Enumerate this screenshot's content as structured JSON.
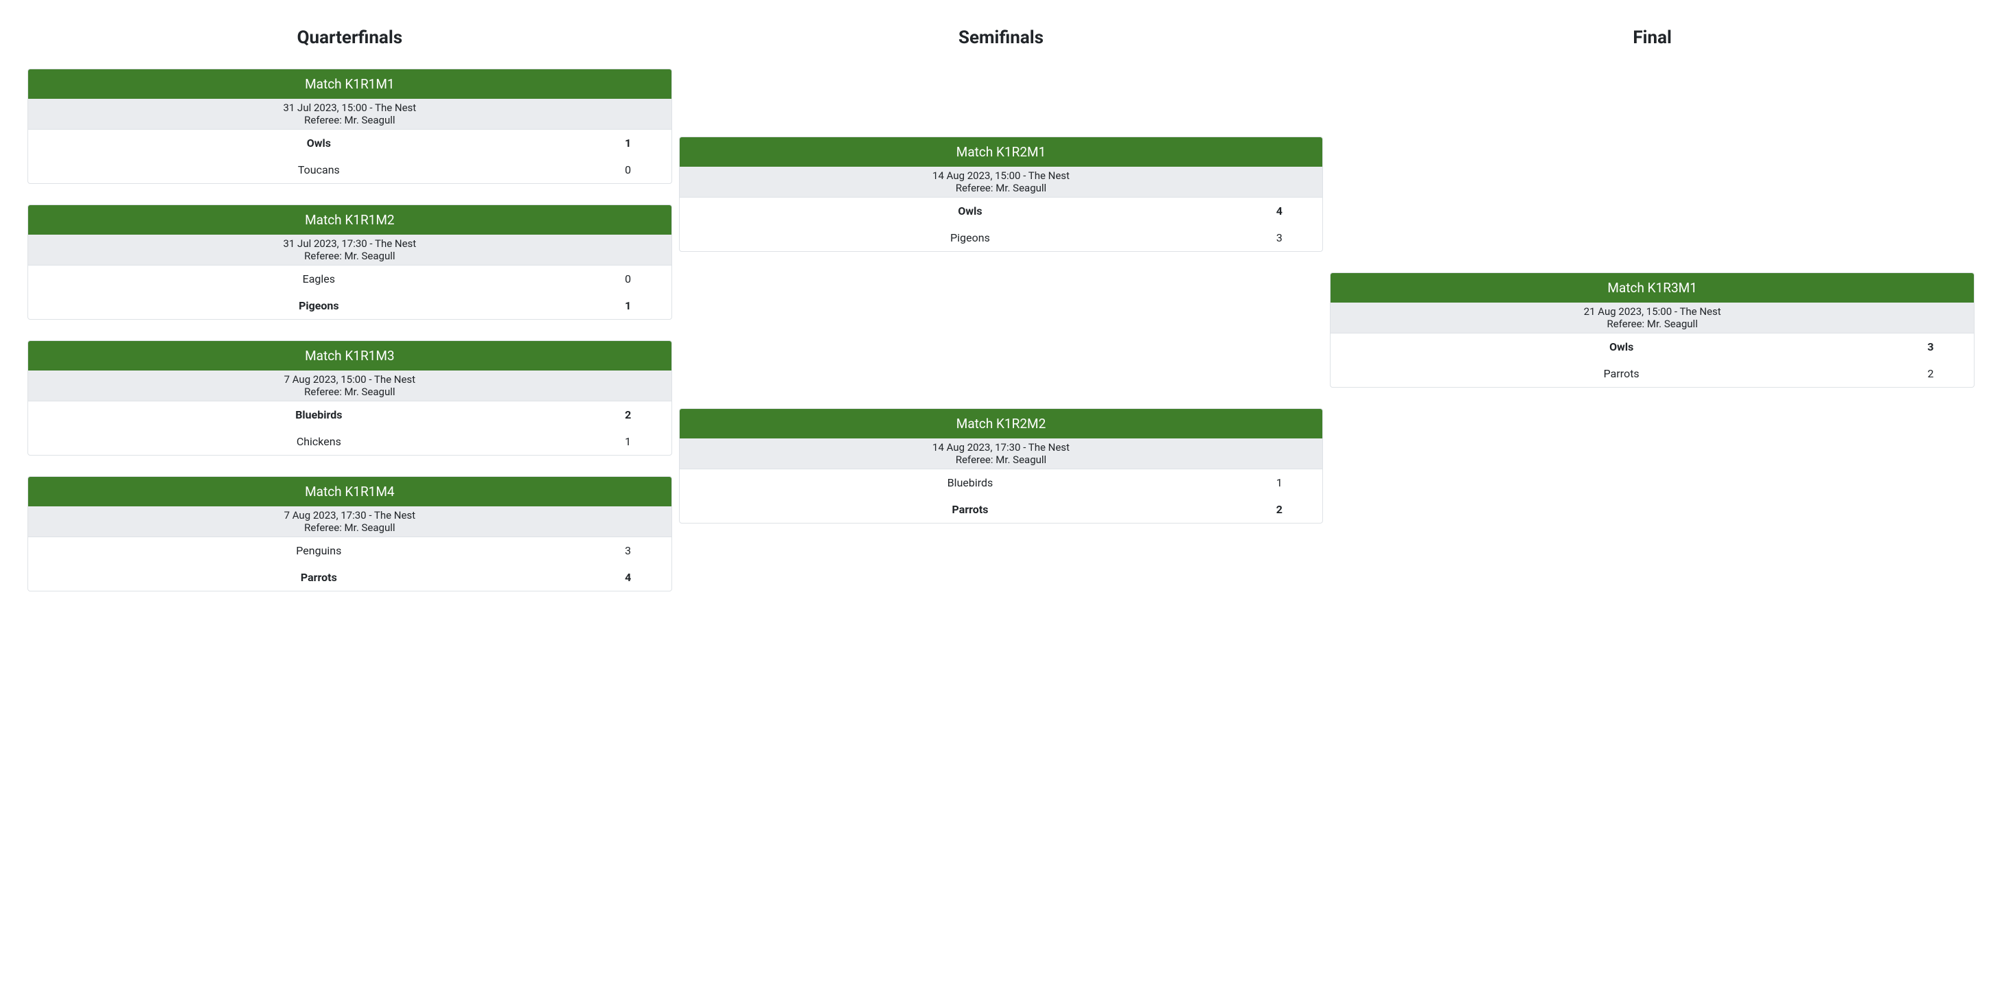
{
  "colors": {
    "header_bg": "#3f7e2a",
    "header_text": "#ffffff",
    "meta_bg": "#eaecef",
    "card_border": "#dee2e6",
    "page_bg": "#ffffff",
    "text": "#212529"
  },
  "rounds": [
    {
      "title": "Quarterfinals",
      "matches": [
        {
          "code": "Match K1R1M1",
          "datetime_venue": "31 Jul 2023, 15:00 - The Nest",
          "referee": "Referee: Mr. Seagull",
          "teams": [
            {
              "name": "Owls",
              "score": "1",
              "winner": true
            },
            {
              "name": "Toucans",
              "score": "0",
              "winner": false
            }
          ]
        },
        {
          "code": "Match K1R1M2",
          "datetime_venue": "31 Jul 2023, 17:30 - The Nest",
          "referee": "Referee: Mr. Seagull",
          "teams": [
            {
              "name": "Eagles",
              "score": "0",
              "winner": false
            },
            {
              "name": "Pigeons",
              "score": "1",
              "winner": true
            }
          ]
        },
        {
          "code": "Match K1R1M3",
          "datetime_venue": "7 Aug 2023, 15:00 - The Nest",
          "referee": "Referee: Mr. Seagull",
          "teams": [
            {
              "name": "Bluebirds",
              "score": "2",
              "winner": true
            },
            {
              "name": "Chickens",
              "score": "1",
              "winner": false
            }
          ]
        },
        {
          "code": "Match K1R1M4",
          "datetime_venue": "7 Aug 2023, 17:30 - The Nest",
          "referee": "Referee: Mr. Seagull",
          "teams": [
            {
              "name": "Penguins",
              "score": "3",
              "winner": false
            },
            {
              "name": "Parrots",
              "score": "4",
              "winner": true
            }
          ]
        }
      ]
    },
    {
      "title": "Semifinals",
      "matches": [
        {
          "code": "Match K1R2M1",
          "datetime_venue": "14 Aug 2023, 15:00 - The Nest",
          "referee": "Referee: Mr. Seagull",
          "teams": [
            {
              "name": "Owls",
              "score": "4",
              "winner": true
            },
            {
              "name": "Pigeons",
              "score": "3",
              "winner": false
            }
          ]
        },
        {
          "code": "Match K1R2M2",
          "datetime_venue": "14 Aug 2023, 17:30 - The Nest",
          "referee": "Referee: Mr. Seagull",
          "teams": [
            {
              "name": "Bluebirds",
              "score": "1",
              "winner": false
            },
            {
              "name": "Parrots",
              "score": "2",
              "winner": true
            }
          ]
        }
      ]
    },
    {
      "title": "Final",
      "matches": [
        {
          "code": "Match K1R3M1",
          "datetime_venue": "21 Aug 2023, 15:00 - The Nest",
          "referee": "Referee: Mr. Seagull",
          "teams": [
            {
              "name": "Owls",
              "score": "3",
              "winner": true
            },
            {
              "name": "Parrots",
              "score": "2",
              "winner": false
            }
          ]
        }
      ]
    }
  ]
}
